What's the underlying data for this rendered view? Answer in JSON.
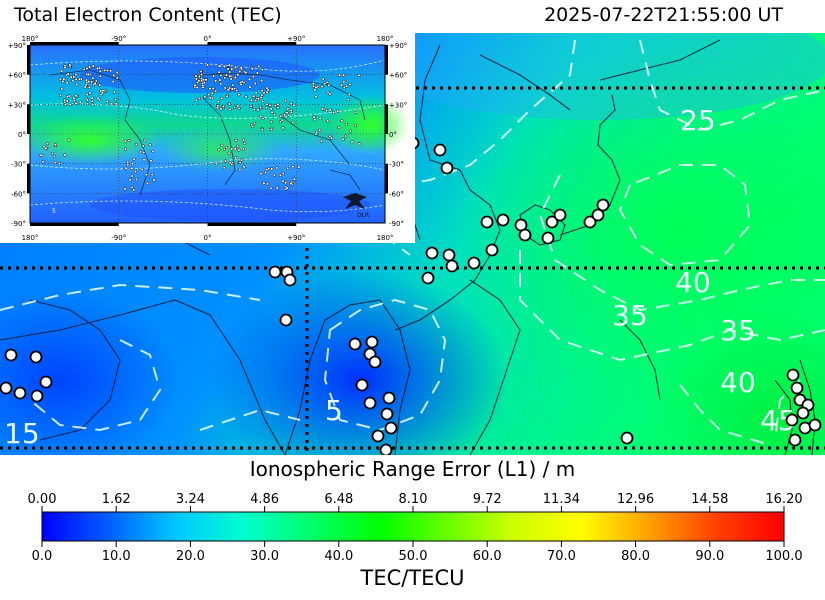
{
  "header": {
    "title": "Total Electron Content (TEC)",
    "timestamp": "2025-07-22T21:55:00 UT"
  },
  "main_map": {
    "contour_labels": [
      "25",
      "40",
      "35",
      "35",
      "40",
      "45",
      "5",
      "15"
    ]
  },
  "inset_map": {
    "top_lon_labels": [
      "180°",
      "-90°",
      "0°",
      "+90°",
      "180°"
    ],
    "bottom_lon_labels": [
      "180°",
      "-90°",
      "0°",
      "+90°",
      "180°"
    ],
    "left_lat_labels": [
      "+90°",
      "+60°",
      "+30°",
      "0°",
      "-30°",
      "-60°",
      "-90°"
    ],
    "right_lat_labels": [
      "+90°",
      "+60°",
      "+30°",
      "0°",
      "-30°",
      "-60°",
      "-90°"
    ],
    "contour_label": "5",
    "logo_text": "DLR"
  },
  "colorbar": {
    "top_title": "Ionospheric Range Error (L1) / m",
    "top_ticks": [
      "0.00",
      "1.62",
      "3.24",
      "4.86",
      "6.48",
      "8.10",
      "9.72",
      "11.34",
      "12.96",
      "14.58",
      "16.20"
    ],
    "bottom_ticks": [
      "0.0",
      "10.0",
      "20.0",
      "30.0",
      "40.0",
      "50.0",
      "60.0",
      "70.0",
      "80.0",
      "90.0",
      "100.0"
    ],
    "bottom_title": "TEC/TECU",
    "colors": [
      "#0000ff",
      "#0060ff",
      "#00c8ff",
      "#00ffcc",
      "#00ff66",
      "#00ff00",
      "#66ff00",
      "#ccff00",
      "#ffff00",
      "#ffa000",
      "#ff4000",
      "#ff0000"
    ]
  }
}
